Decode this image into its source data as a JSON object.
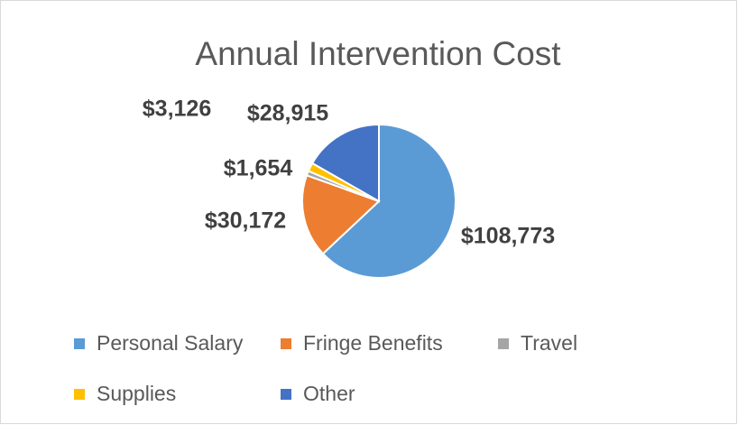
{
  "chart_data": {
    "type": "pie",
    "title": "Annual Intervention Cost",
    "categories": [
      "Personal Salary",
      "Fringe Benefits",
      "Travel",
      "Supplies",
      "Other"
    ],
    "values": [
      108773,
      30172,
      1654,
      3126,
      28915
    ],
    "value_labels": [
      "$108,773",
      "$30,172",
      "$1,654",
      "$3,126",
      "$28,915"
    ],
    "colors": [
      "#5b9bd5",
      "#ed7d31",
      "#a5a5a5",
      "#ffc000",
      "#4472c4"
    ],
    "legend": "bottom"
  }
}
